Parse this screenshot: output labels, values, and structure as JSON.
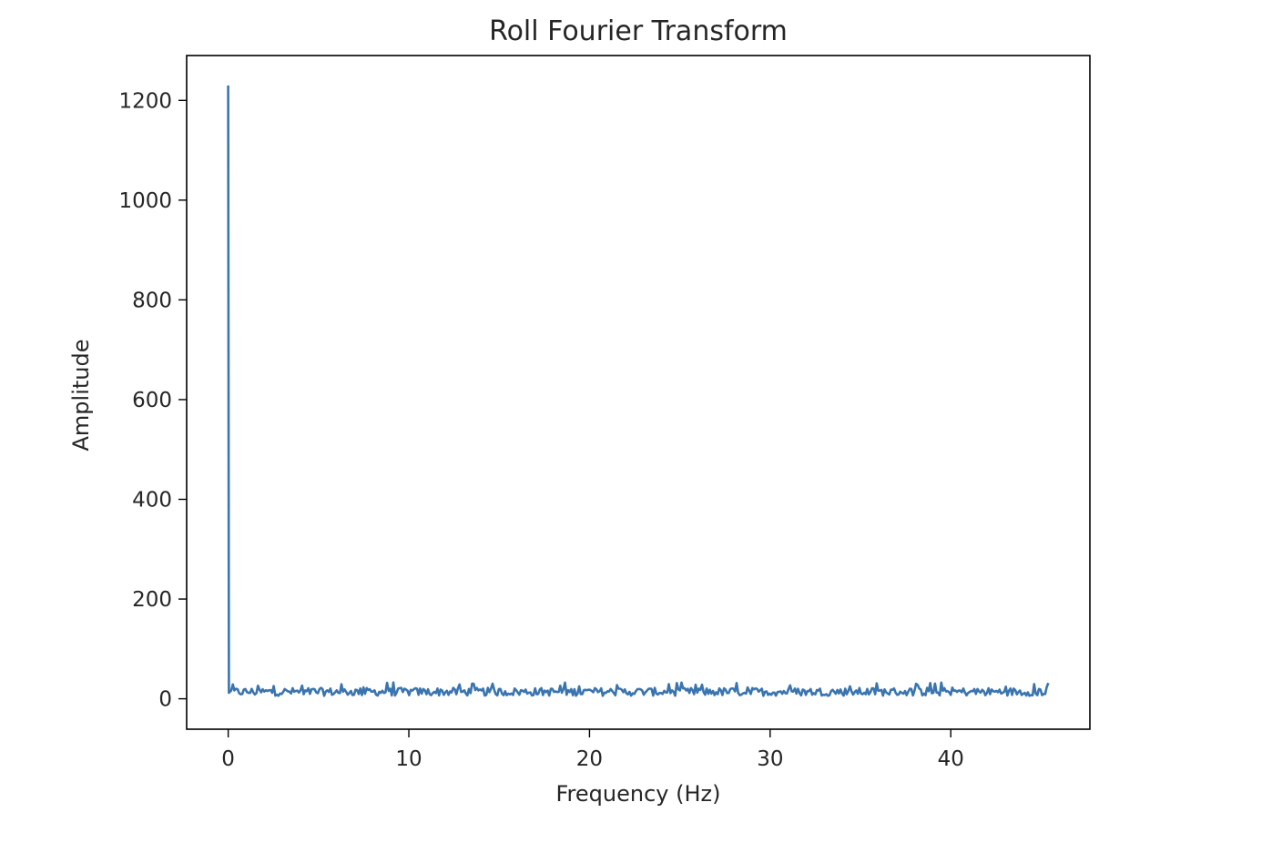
{
  "chart_data": {
    "type": "line",
    "title": "Roll Fourier Transform",
    "xlabel": "Frequency (Hz)",
    "ylabel": "Amplitude",
    "xlim": [
      -2.3,
      47.7
    ],
    "ylim": [
      -61,
      1290
    ],
    "xticks": [
      0,
      10,
      20,
      30,
      40
    ],
    "yticks": [
      0,
      200,
      400,
      600,
      800,
      1000,
      1200
    ],
    "grid": false,
    "legend": "none",
    "line_color": "#3a75b0",
    "series": [
      {
        "x_start": 0,
        "x_end": 45.4,
        "peak": {
          "x": 0,
          "y": 1230
        },
        "noise_floor_mean": 14,
        "noise_floor_range": [
          3,
          33
        ]
      }
    ]
  }
}
